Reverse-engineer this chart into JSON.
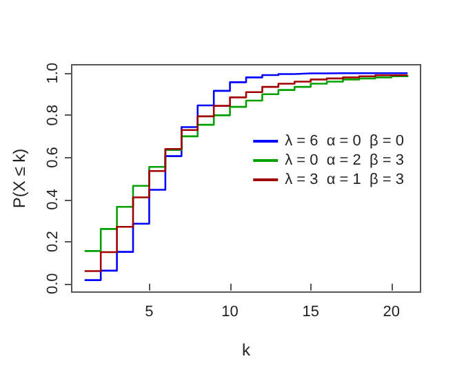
{
  "chart_data": {
    "type": "step",
    "xlabel": "k",
    "ylabel": "P(X ≤ k)",
    "x": [
      1,
      2,
      3,
      4,
      5,
      6,
      7,
      8,
      9,
      10,
      11,
      12,
      13,
      14,
      15,
      16,
      17,
      18,
      19,
      20,
      21
    ],
    "series": [
      {
        "name": "λ = 6  α = 0  β = 0",
        "color": "#0000ff",
        "values": [
          0.017,
          0.062,
          0.151,
          0.285,
          0.446,
          0.606,
          0.744,
          0.847,
          0.916,
          0.957,
          0.98,
          0.991,
          0.996,
          0.999,
          0.999,
          1.0,
          1.0,
          1.0,
          1.0,
          1.0,
          1.0
        ]
      },
      {
        "name": "λ = 0  α = 2  β = 3",
        "color": "#00a000",
        "values": [
          0.155,
          0.26,
          0.365,
          0.465,
          0.555,
          0.635,
          0.7,
          0.755,
          0.8,
          0.84,
          0.87,
          0.9,
          0.92,
          0.935,
          0.95,
          0.96,
          0.97,
          0.975,
          0.98,
          0.985,
          0.99
        ]
      },
      {
        "name": "λ = 3  α = 1  β = 3",
        "color": "#a00000",
        "values": [
          0.06,
          0.15,
          0.27,
          0.41,
          0.535,
          0.64,
          0.73,
          0.795,
          0.845,
          0.885,
          0.91,
          0.935,
          0.95,
          0.96,
          0.97,
          0.975,
          0.98,
          0.985,
          0.99,
          0.99,
          0.993
        ]
      }
    ],
    "xlim": [
      0.2,
      21.8
    ],
    "xticks": [
      5,
      10,
      15,
      20
    ],
    "ylim": [
      -0.04,
      1.04
    ],
    "yticks": [
      {
        "value": 0,
        "label": "0.0"
      },
      {
        "value": 0.2,
        "label": "0.2"
      },
      {
        "value": 0.4,
        "label": "0.4"
      },
      {
        "value": 0.6,
        "label": "0.6"
      },
      {
        "value": 0.8,
        "label": "0.8"
      },
      {
        "value": 1,
        "label": "1.0"
      }
    ],
    "legend": "right",
    "grid": false,
    "marker": "none",
    "line_style": "solid"
  }
}
